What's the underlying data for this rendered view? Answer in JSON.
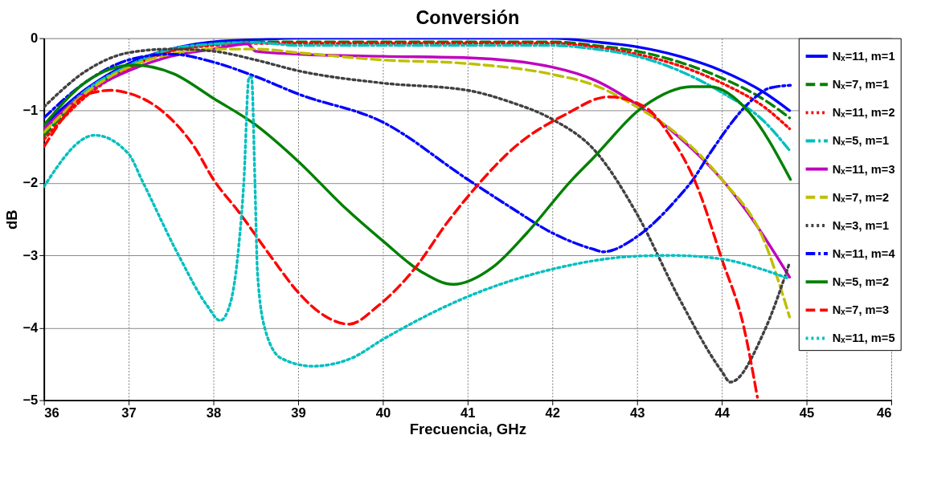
{
  "chart_data": {
    "type": "line",
    "title": "Conversión",
    "xlabel": "Frecuencia, GHz",
    "ylabel": "dB",
    "xlim": [
      36,
      46
    ],
    "xticks": [
      36,
      37,
      38,
      39,
      40,
      41,
      42,
      43,
      44,
      45,
      46
    ],
    "ylim": [
      -5,
      0
    ],
    "yticks": [
      -5,
      -4,
      -3,
      -2,
      -1,
      0
    ],
    "grid": true,
    "legend": "top right",
    "series": [
      {
        "name": "Nₓ=11, m=1",
        "color": "#0000ff",
        "line_style": "solid",
        "x": [
          36,
          36.5,
          37,
          37.5,
          38,
          38.5,
          39,
          40,
          41,
          42,
          42.5,
          43,
          43.5,
          44,
          44.5,
          44.8
        ],
        "values": [
          -1.2,
          -0.7,
          -0.35,
          -0.15,
          -0.05,
          -0.02,
          0,
          0,
          0,
          0,
          -0.05,
          -0.12,
          -0.25,
          -0.45,
          -0.75,
          -1.0
        ]
      },
      {
        "name": "Nₓ=7, m=1",
        "color": "#008000",
        "line_style": "dashed",
        "x": [
          36,
          36.5,
          37,
          37.5,
          38,
          38.5,
          39,
          40,
          41,
          42,
          42.5,
          43,
          43.5,
          44,
          44.5,
          44.8
        ],
        "values": [
          -1.35,
          -0.75,
          -0.4,
          -0.17,
          -0.08,
          -0.05,
          -0.05,
          -0.05,
          -0.05,
          -0.05,
          -0.1,
          -0.18,
          -0.33,
          -0.55,
          -0.85,
          -1.1
        ]
      },
      {
        "name": "Nₓ=11, m=2",
        "color": "#ff0000",
        "line_style": "dotted",
        "x": [
          36,
          36.5,
          37,
          37.5,
          38,
          38.5,
          39,
          40,
          41,
          42,
          42.5,
          43,
          43.5,
          44,
          44.5,
          44.8
        ],
        "values": [
          -1.4,
          -0.8,
          -0.42,
          -0.18,
          -0.1,
          -0.07,
          -0.07,
          -0.07,
          -0.07,
          -0.07,
          -0.12,
          -0.22,
          -0.38,
          -0.62,
          -0.95,
          -1.25
        ]
      },
      {
        "name": "Nₓ=5, m=1",
        "color": "#00bfbf",
        "line_style": "dashdot",
        "x": [
          36,
          36.5,
          37,
          37.5,
          38,
          38.5,
          39,
          40,
          41,
          42,
          42.5,
          43,
          43.5,
          44,
          44.5,
          44.8
        ],
        "values": [
          -1.3,
          -0.72,
          -0.38,
          -0.15,
          -0.08,
          -0.06,
          -0.1,
          -0.1,
          -0.1,
          -0.1,
          -0.15,
          -0.25,
          -0.45,
          -0.75,
          -1.15,
          -1.55
        ]
      },
      {
        "name": "Nₓ=11, m=3",
        "color": "#bf00bf",
        "line_style": "solid",
        "x": [
          36,
          36.5,
          37,
          37.5,
          38,
          38.4,
          38.5,
          39,
          40,
          41,
          42,
          42.5,
          43,
          43.5,
          44,
          44.3,
          44.8
        ],
        "values": [
          -1.25,
          -0.75,
          -0.45,
          -0.25,
          -0.15,
          -0.08,
          -0.18,
          -0.22,
          -0.25,
          -0.27,
          -0.4,
          -0.58,
          -0.92,
          -1.37,
          -1.95,
          -2.4,
          -3.3
        ]
      },
      {
        "name": "Nₓ=7, m=2",
        "color": "#bfbf00",
        "line_style": "dashed",
        "x": [
          36,
          36.5,
          37,
          37.5,
          38,
          38.5,
          39,
          40,
          41,
          42,
          42.5,
          43,
          43.5,
          44,
          44.5,
          44.8
        ],
        "values": [
          -1.3,
          -0.75,
          -0.4,
          -0.22,
          -0.15,
          -0.15,
          -0.2,
          -0.3,
          -0.35,
          -0.5,
          -0.65,
          -0.95,
          -1.35,
          -1.95,
          -2.8,
          -3.85
        ]
      },
      {
        "name": "Nₓ=3, m=1",
        "color": "#404040",
        "line_style": "dotted",
        "x": [
          36,
          36.5,
          37,
          37.5,
          38,
          38.5,
          39,
          40,
          41,
          41.5,
          42,
          42.5,
          43,
          43.5,
          44,
          44.1,
          44.5,
          44.8
        ],
        "values": [
          -0.95,
          -0.45,
          -0.2,
          -0.15,
          -0.18,
          -0.3,
          -0.45,
          -0.62,
          -0.72,
          -0.88,
          -1.12,
          -1.55,
          -2.43,
          -3.6,
          -4.6,
          -4.75,
          -4.05,
          -3.1
        ]
      },
      {
        "name": "Nₓ=11, m=4",
        "color": "#0000ff",
        "line_style": "dashdot",
        "x": [
          36,
          36.5,
          37,
          37.5,
          38,
          38.5,
          39,
          40,
          41,
          41.5,
          42,
          42.5,
          42.6,
          43,
          43.5,
          43.65,
          43.86,
          44.38,
          44.56,
          44.81
        ],
        "values": [
          -1.1,
          -0.6,
          -0.3,
          -0.22,
          -0.33,
          -0.53,
          -0.77,
          -1.16,
          -1.95,
          -2.33,
          -2.69,
          -2.92,
          -2.95,
          -2.74,
          -2.18,
          -1.97,
          -1.59,
          -0.83,
          -0.69,
          -0.65
        ]
      },
      {
        "name": "Nₓ=5, m=2",
        "color": "#008000",
        "line_style": "solid",
        "x": [
          36,
          36.5,
          37.06,
          37.53,
          38,
          38.49,
          39,
          39.56,
          40,
          40.46,
          40.83,
          41.3,
          41.7,
          42.22,
          42.47,
          43.08,
          43.64,
          43.86,
          44.32,
          44.81
        ],
        "values": [
          -1.2,
          -0.6,
          -0.37,
          -0.49,
          -0.83,
          -1.19,
          -1.7,
          -2.35,
          -2.8,
          -3.23,
          -3.4,
          -3.16,
          -2.69,
          -1.97,
          -1.67,
          -0.94,
          -0.67,
          -0.67,
          -1.02,
          -1.95
        ]
      },
      {
        "name": "Nₓ=7, m=3",
        "color": "#ff0000",
        "line_style": "dashed",
        "x": [
          36,
          36.55,
          36.79,
          37,
          37.41,
          37.78,
          38,
          38.3,
          38.7,
          39,
          39.32,
          39.6,
          39.94,
          40.37,
          40.77,
          41.14,
          41.55,
          42.16,
          42.66,
          43.08,
          43.4,
          43.7,
          44,
          44.26,
          44.42
        ],
        "values": [
          -1.5,
          -0.76,
          -0.72,
          -0.76,
          -1.02,
          -1.51,
          -1.95,
          -2.4,
          -3.05,
          -3.51,
          -3.84,
          -3.95,
          -3.7,
          -3.19,
          -2.53,
          -2.0,
          -1.51,
          -1.05,
          -0.81,
          -0.94,
          -1.37,
          -2.02,
          -3.05,
          -3.99,
          -4.96
        ]
      },
      {
        "name": "Nₓ=11, m=5",
        "color": "#00bfbf",
        "line_style": "dotted",
        "x": [
          36,
          36.6,
          37,
          37.16,
          37.59,
          37.93,
          38.08,
          38.2,
          38.3,
          38.36,
          38.42,
          38.45,
          38.49,
          38.52,
          38.61,
          38.8,
          39.17,
          39.63,
          40,
          41,
          42,
          43,
          43.4,
          44,
          44.47,
          44.79
        ],
        "values": [
          -2.05,
          -1.34,
          -1.6,
          -1.97,
          -3.0,
          -3.7,
          -3.9,
          -3.66,
          -2.86,
          -1.97,
          -0.54,
          -0.54,
          -1.97,
          -3.23,
          -4.02,
          -4.42,
          -4.53,
          -4.42,
          -4.16,
          -3.57,
          -3.19,
          -3.01,
          -3.0,
          -3.05,
          -3.19,
          -3.32
        ]
      }
    ]
  }
}
